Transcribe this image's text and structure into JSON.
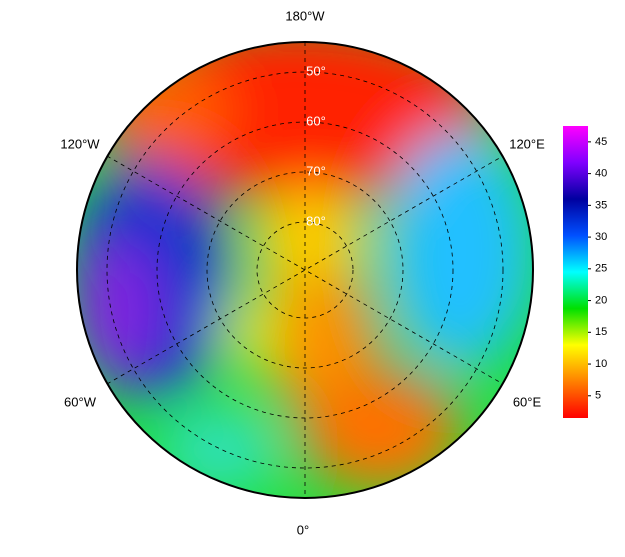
{
  "map": {
    "longitude_labels": [
      "180°W",
      "120°E",
      "60°E",
      "0°",
      "60°W",
      "120°W"
    ],
    "latitude_labels": [
      "50°",
      "60°",
      "70°",
      "80°"
    ]
  },
  "colorbar": {
    "range": [
      1.5,
      47.5
    ],
    "ticks": [
      5,
      10,
      15,
      20,
      25,
      30,
      35,
      40,
      45
    ],
    "colors": [
      "#ff0000",
      "#ff8000",
      "#ffff00",
      "#00e000",
      "#00ffff",
      "#0050ff",
      "#0000a0",
      "#8000ff",
      "#ff00ff"
    ]
  }
}
